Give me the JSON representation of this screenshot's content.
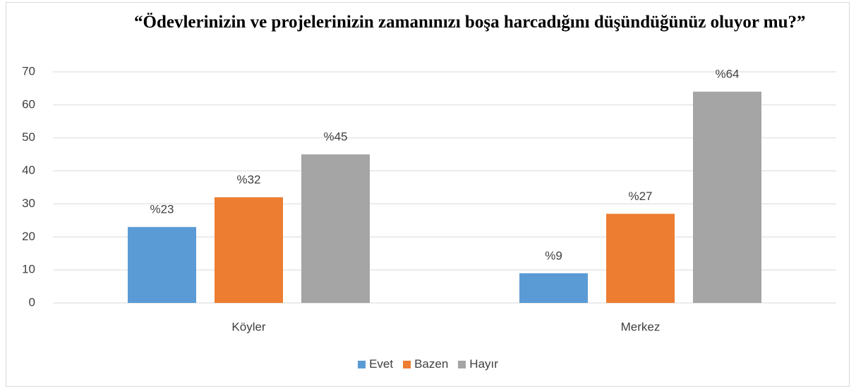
{
  "chart_data": {
    "type": "bar",
    "title": "“Ödevlerinizin ve projelerinizin zamanınızı boşa harcadığını düşündüğünüz oluyor mu?”",
    "categories": [
      "Köyler",
      "Merkez"
    ],
    "series": [
      {
        "name": "Evet",
        "color": "#5b9bd5",
        "values": [
          23,
          9
        ],
        "value_labels": [
          "%23",
          "%9"
        ]
      },
      {
        "name": "Bazen",
        "color": "#ed7d31",
        "values": [
          32,
          27
        ],
        "value_labels": [
          "%32",
          "%27"
        ]
      },
      {
        "name": "Hayır",
        "color": "#a5a5a5",
        "values": [
          45,
          64
        ],
        "value_labels": [
          "%45",
          "%64"
        ]
      }
    ],
    "ylim": [
      0,
      70
    ],
    "yticks": [
      0,
      10,
      20,
      30,
      40,
      50,
      60,
      70
    ],
    "grid": true,
    "legend": "bottom"
  }
}
